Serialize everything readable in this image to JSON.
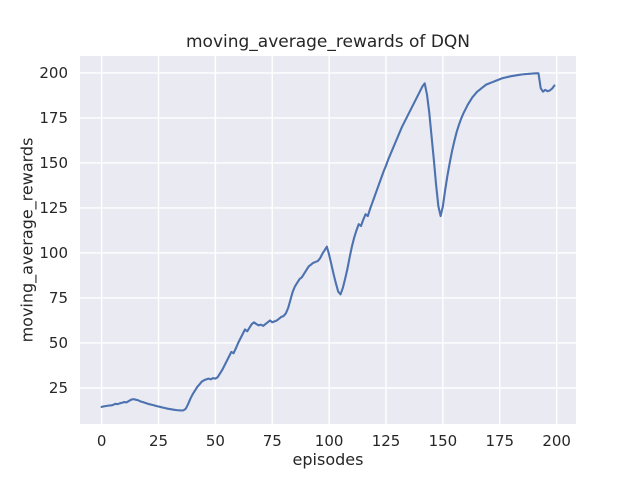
{
  "chart_data": {
    "type": "line",
    "title": "moving_average_rewards of DQN",
    "xlabel": "episodes",
    "ylabel": "moving_average_rewards",
    "xlim": [
      -9.5,
      208.5
    ],
    "ylim": [
      5,
      209.4
    ],
    "xticks": [
      0,
      25,
      50,
      75,
      100,
      125,
      150,
      175,
      200
    ],
    "yticks": [
      25,
      50,
      75,
      100,
      125,
      150,
      175,
      200
    ],
    "grid": true,
    "legend": "none",
    "style": {
      "line_color": "#4C72B0",
      "plot_bg": "#EAEAF2",
      "grid_color": "#FFFFFF",
      "text_color": "#262626",
      "fig_bg": "#FFFFFF",
      "line_width": 2.1,
      "grid_width": 1.4
    },
    "series": [
      {
        "name": "moving_average_rewards",
        "points": [
          [
            0,
            14.5
          ],
          [
            1,
            14.8
          ],
          [
            2,
            15.0
          ],
          [
            3,
            15.2
          ],
          [
            4,
            15.3
          ],
          [
            5,
            15.6
          ],
          [
            6,
            16.2
          ],
          [
            7,
            16.0
          ],
          [
            8,
            16.5
          ],
          [
            9,
            16.8
          ],
          [
            10,
            17.2
          ],
          [
            11,
            17.0
          ],
          [
            12,
            17.8
          ],
          [
            13,
            18.5
          ],
          [
            14,
            18.8
          ],
          [
            15,
            18.5
          ],
          [
            16,
            18.2
          ],
          [
            17,
            17.6
          ],
          [
            18,
            17.2
          ],
          [
            19,
            16.8
          ],
          [
            20,
            16.4
          ],
          [
            21,
            16.0
          ],
          [
            22,
            15.7
          ],
          [
            23,
            15.4
          ],
          [
            24,
            15.0
          ],
          [
            25,
            14.7
          ],
          [
            26,
            14.4
          ],
          [
            27,
            14.1
          ],
          [
            28,
            13.8
          ],
          [
            29,
            13.5
          ],
          [
            30,
            13.3
          ],
          [
            31,
            13.1
          ],
          [
            32,
            12.9
          ],
          [
            33,
            12.7
          ],
          [
            34,
            12.6
          ],
          [
            35,
            12.5
          ],
          [
            36,
            12.6
          ],
          [
            37,
            13.5
          ],
          [
            38,
            16.0
          ],
          [
            39,
            19.0
          ],
          [
            40,
            21.5
          ],
          [
            41,
            23.5
          ],
          [
            42,
            25.5
          ],
          [
            43,
            27.0
          ],
          [
            44,
            28.5
          ],
          [
            45,
            29.3
          ],
          [
            46,
            29.8
          ],
          [
            47,
            30.2
          ],
          [
            48,
            29.8
          ],
          [
            49,
            30.5
          ],
          [
            50,
            30.2
          ],
          [
            51,
            31.0
          ],
          [
            52,
            33.0
          ],
          [
            53,
            35.0
          ],
          [
            54,
            37.5
          ],
          [
            55,
            40.0
          ],
          [
            56,
            42.5
          ],
          [
            57,
            45.0
          ],
          [
            58,
            44.3
          ],
          [
            59,
            47.0
          ],
          [
            60,
            50.0
          ],
          [
            61,
            52.5
          ],
          [
            62,
            55.0
          ],
          [
            63,
            57.5
          ],
          [
            64,
            56.5
          ],
          [
            65,
            58.5
          ],
          [
            66,
            60.5
          ],
          [
            67,
            61.5
          ],
          [
            68,
            60.5
          ],
          [
            69,
            59.8
          ],
          [
            70,
            60.2
          ],
          [
            71,
            59.5
          ],
          [
            72,
            60.5
          ],
          [
            73,
            61.5
          ],
          [
            74,
            62.5
          ],
          [
            75,
            61.5
          ],
          [
            76,
            62.0
          ],
          [
            77,
            62.5
          ],
          [
            78,
            63.5
          ],
          [
            79,
            64.5
          ],
          [
            80,
            65.0
          ],
          [
            81,
            66.5
          ],
          [
            82,
            69.5
          ],
          [
            83,
            74.0
          ],
          [
            84,
            78.5
          ],
          [
            85,
            81.5
          ],
          [
            86,
            83.5
          ],
          [
            87,
            85.5
          ],
          [
            88,
            86.5
          ],
          [
            89,
            88.5
          ],
          [
            90,
            90.5
          ],
          [
            91,
            92.5
          ],
          [
            92,
            93.5
          ],
          [
            93,
            94.5
          ],
          [
            94,
            95.0
          ],
          [
            95,
            95.5
          ],
          [
            96,
            97.0
          ],
          [
            97,
            99.5
          ],
          [
            98,
            101.5
          ],
          [
            99,
            103.5
          ],
          [
            100,
            99.0
          ],
          [
            101,
            93.5
          ],
          [
            102,
            88.0
          ],
          [
            103,
            83.0
          ],
          [
            104,
            78.5
          ],
          [
            105,
            77.0
          ],
          [
            106,
            80.5
          ],
          [
            107,
            85.5
          ],
          [
            108,
            91.0
          ],
          [
            109,
            97.5
          ],
          [
            110,
            103.5
          ],
          [
            111,
            108.5
          ],
          [
            112,
            112.5
          ],
          [
            113,
            116.0
          ],
          [
            114,
            115.0
          ],
          [
            115,
            118.5
          ],
          [
            116,
            121.5
          ],
          [
            117,
            120.5
          ],
          [
            118,
            124.5
          ],
          [
            119,
            128.0
          ],
          [
            120,
            131.5
          ],
          [
            121,
            135.0
          ],
          [
            122,
            138.5
          ],
          [
            123,
            142.0
          ],
          [
            124,
            145.5
          ],
          [
            125,
            148.5
          ],
          [
            126,
            152.0
          ],
          [
            127,
            155.0
          ],
          [
            128,
            158.0
          ],
          [
            129,
            161.0
          ],
          [
            130,
            164.0
          ],
          [
            131,
            167.0
          ],
          [
            132,
            170.0
          ],
          [
            133,
            172.5
          ],
          [
            134,
            175.0
          ],
          [
            135,
            177.5
          ],
          [
            136,
            180.0
          ],
          [
            137,
            182.5
          ],
          [
            138,
            185.0
          ],
          [
            139,
            187.5
          ],
          [
            140,
            190.0
          ],
          [
            141,
            192.5
          ],
          [
            142,
            194.2
          ],
          [
            143,
            188.0
          ],
          [
            144,
            178.0
          ],
          [
            145,
            165.0
          ],
          [
            146,
            152.0
          ],
          [
            147,
            138.0
          ],
          [
            148,
            126.0
          ],
          [
            149,
            120.5
          ],
          [
            150,
            126.0
          ],
          [
            151,
            135.0
          ],
          [
            152,
            143.0
          ],
          [
            153,
            150.0
          ],
          [
            154,
            156.5
          ],
          [
            155,
            162.0
          ],
          [
            156,
            167.0
          ],
          [
            157,
            171.0
          ],
          [
            158,
            174.5
          ],
          [
            159,
            177.5
          ],
          [
            160,
            180.0
          ],
          [
            161,
            182.5
          ],
          [
            162,
            184.5
          ],
          [
            163,
            186.5
          ],
          [
            164,
            188.0
          ],
          [
            165,
            189.5
          ],
          [
            166,
            190.5
          ],
          [
            167,
            191.5
          ],
          [
            168,
            192.5
          ],
          [
            169,
            193.5
          ],
          [
            170,
            194.0
          ],
          [
            171,
            194.5
          ],
          [
            172,
            195.0
          ],
          [
            173,
            195.5
          ],
          [
            174,
            196.0
          ],
          [
            175,
            196.5
          ],
          [
            176,
            197.0
          ],
          [
            177,
            197.3
          ],
          [
            178,
            197.6
          ],
          [
            179,
            197.9
          ],
          [
            180,
            198.2
          ],
          [
            181,
            198.4
          ],
          [
            182,
            198.6
          ],
          [
            183,
            198.8
          ],
          [
            184,
            199.0
          ],
          [
            185,
            199.2
          ],
          [
            186,
            199.3
          ],
          [
            187,
            199.4
          ],
          [
            188,
            199.5
          ],
          [
            189,
            199.6
          ],
          [
            190,
            199.7
          ],
          [
            191,
            199.8
          ],
          [
            192,
            199.8
          ],
          [
            193,
            191.5
          ],
          [
            194,
            189.6
          ],
          [
            195,
            190.6
          ],
          [
            196,
            189.8
          ],
          [
            197,
            190.3
          ],
          [
            198,
            191.3
          ],
          [
            199,
            193.0
          ]
        ]
      }
    ]
  }
}
